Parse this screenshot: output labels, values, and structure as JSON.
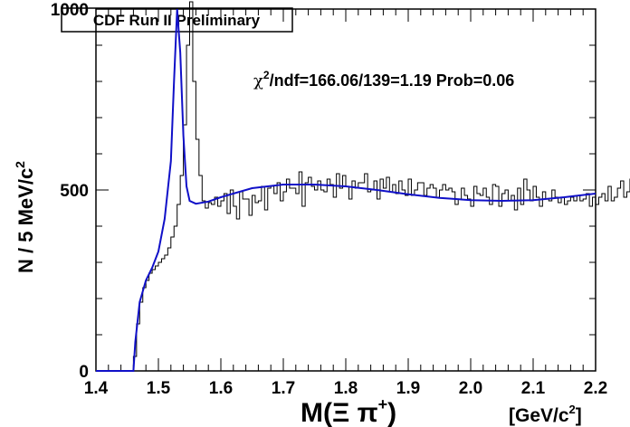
{
  "header_label": "CDF Run II Preliminary",
  "fit_text": {
    "chi": "χ",
    "sup": "2",
    "rest": "/ndf=166.06/139=1.19 Prob=0.06"
  },
  "ylabel": {
    "main": "N / 5 MeV/c",
    "sup": "2"
  },
  "xlabel": {
    "main": "M(Ξ π",
    "sup": "+",
    "close": ")",
    "units_main": "[GeV/c",
    "units_sup": "2",
    "units_close": "]"
  },
  "colors": {
    "fit_curve": "#1010c8",
    "histogram": "#000000",
    "frame": "#000000"
  },
  "chart_data": {
    "type": "line",
    "xlim": [
      1.4,
      2.2
    ],
    "ylim": [
      0,
      1000
    ],
    "x_ticks": [
      "1.4",
      "1.5",
      "1.6",
      "1.7",
      "1.8",
      "1.9",
      "2.0",
      "2.1",
      "2.2"
    ],
    "y_ticks": [
      "0",
      "500",
      "1000"
    ],
    "grid": false,
    "series": [
      {
        "kind": "histogram",
        "bin_width": 0.005,
        "x_start": 1.4,
        "values": [
          0,
          0,
          0,
          0,
          0,
          0,
          0,
          0,
          0,
          0,
          0,
          0,
          40,
          130,
          190,
          230,
          250,
          270,
          280,
          290,
          300,
          310,
          320,
          340,
          370,
          400,
          460,
          540,
          680,
          900,
          1020,
          800,
          640,
          540,
          470,
          450,
          465,
          460,
          480,
          455,
          470,
          490,
          435,
          500,
          455,
          420,
          495,
          475,
          475,
          430,
          485,
          465,
          470,
          510,
          445,
          505,
          510,
          490,
          520,
          470,
          495,
          530,
          505,
          505,
          490,
          550,
          455,
          520,
          535,
          510,
          500,
          525,
          500,
          495,
          530,
          515,
          480,
          545,
          505,
          540,
          510,
          475,
          525,
          505,
          520,
          520,
          545,
          495,
          500,
          525,
          475,
          530,
          505,
          535,
          495,
          515,
          490,
          525,
          500,
          485,
          530,
          485,
          500,
          520,
          520,
          485,
          505,
          515,
          505,
          480,
          500,
          515,
          500,
          505,
          495,
          460,
          475,
          505,
          485,
          475,
          455,
          510,
          490,
          485,
          505,
          480,
          460,
          515,
          510,
          455,
          490,
          500,
          470,
          485,
          445,
          505,
          460,
          530,
          500,
          470,
          510,
          480,
          455,
          495,
          475,
          470,
          500,
          480,
          465,
          480,
          460,
          470,
          480,
          470,
          485,
          470,
          475,
          490,
          455,
          480,
          460,
          480,
          490,
          470,
          510,
          470,
          480,
          505,
          525,
          480,
          495,
          530,
          500,
          510
        ]
      },
      {
        "kind": "fit",
        "points": [
          [
            1.4,
            0
          ],
          [
            1.46,
            0
          ],
          [
            1.463,
            80
          ],
          [
            1.47,
            190
          ],
          [
            1.48,
            250
          ],
          [
            1.49,
            285
          ],
          [
            1.5,
            330
          ],
          [
            1.51,
            420
          ],
          [
            1.52,
            580
          ],
          [
            1.525,
            800
          ],
          [
            1.53,
            1000
          ],
          [
            1.535,
            880
          ],
          [
            1.54,
            650
          ],
          [
            1.545,
            510
          ],
          [
            1.55,
            470
          ],
          [
            1.56,
            462
          ],
          [
            1.58,
            468
          ],
          [
            1.6,
            480
          ],
          [
            1.65,
            505
          ],
          [
            1.7,
            515
          ],
          [
            1.75,
            515
          ],
          [
            1.8,
            510
          ],
          [
            1.85,
            500
          ],
          [
            1.9,
            488
          ],
          [
            1.95,
            478
          ],
          [
            2.0,
            472
          ],
          [
            2.05,
            470
          ],
          [
            2.1,
            472
          ],
          [
            2.15,
            480
          ],
          [
            2.2,
            490
          ]
        ]
      }
    ]
  }
}
